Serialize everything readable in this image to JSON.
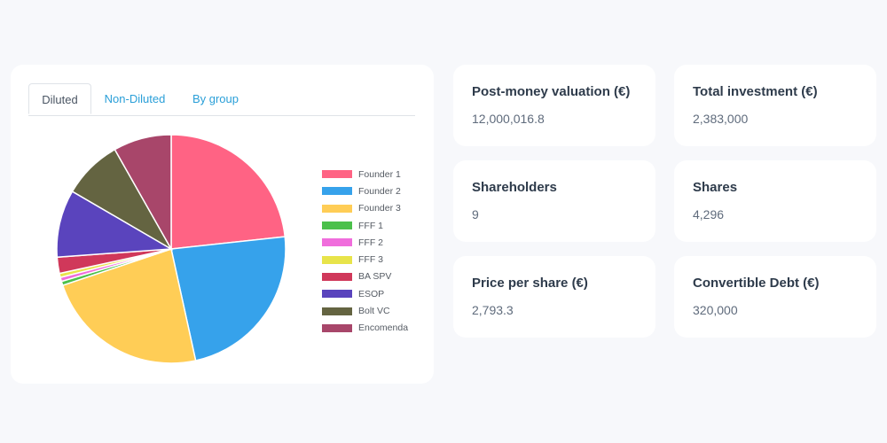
{
  "tabs": [
    {
      "label": "Diluted",
      "active": true
    },
    {
      "label": "Non-Diluted",
      "active": false
    },
    {
      "label": "By group",
      "active": false
    }
  ],
  "chart_data": {
    "type": "pie",
    "legend_position": "right",
    "slices": [
      {
        "label": "Founder 1",
        "value": 24.4,
        "color": "#ff6384"
      },
      {
        "label": "Founder 2",
        "value": 24.4,
        "color": "#36a2eb"
      },
      {
        "label": "Founder 3",
        "value": 24.4,
        "color": "#ffcd56"
      },
      {
        "label": "FFF 1",
        "value": 0.6,
        "color": "#4bc04b"
      },
      {
        "label": "FFF 2",
        "value": 0.6,
        "color": "#f06ddc"
      },
      {
        "label": "FFF 3",
        "value": 0.6,
        "color": "#e8e44a"
      },
      {
        "label": "BA SPV",
        "value": 2.4,
        "color": "#d0385a"
      },
      {
        "label": "ESOP",
        "value": 10.0,
        "color": "#5a44bd"
      },
      {
        "label": "Bolt VC",
        "value": 8.8,
        "color": "#646441"
      },
      {
        "label": "Encomenda",
        "value": 8.6,
        "color": "#a8466a"
      }
    ]
  },
  "stats": [
    {
      "title": "Post-money valuation (€)",
      "value": "12,000,016.8"
    },
    {
      "title": "Total investment (€)",
      "value": "2,383,000"
    },
    {
      "title": "Shareholders",
      "value": "9"
    },
    {
      "title": "Shares",
      "value": "4,296"
    },
    {
      "title": "Price per share (€)",
      "value": "2,793.3"
    },
    {
      "title": "Convertible Debt (€)",
      "value": "320,000"
    }
  ]
}
